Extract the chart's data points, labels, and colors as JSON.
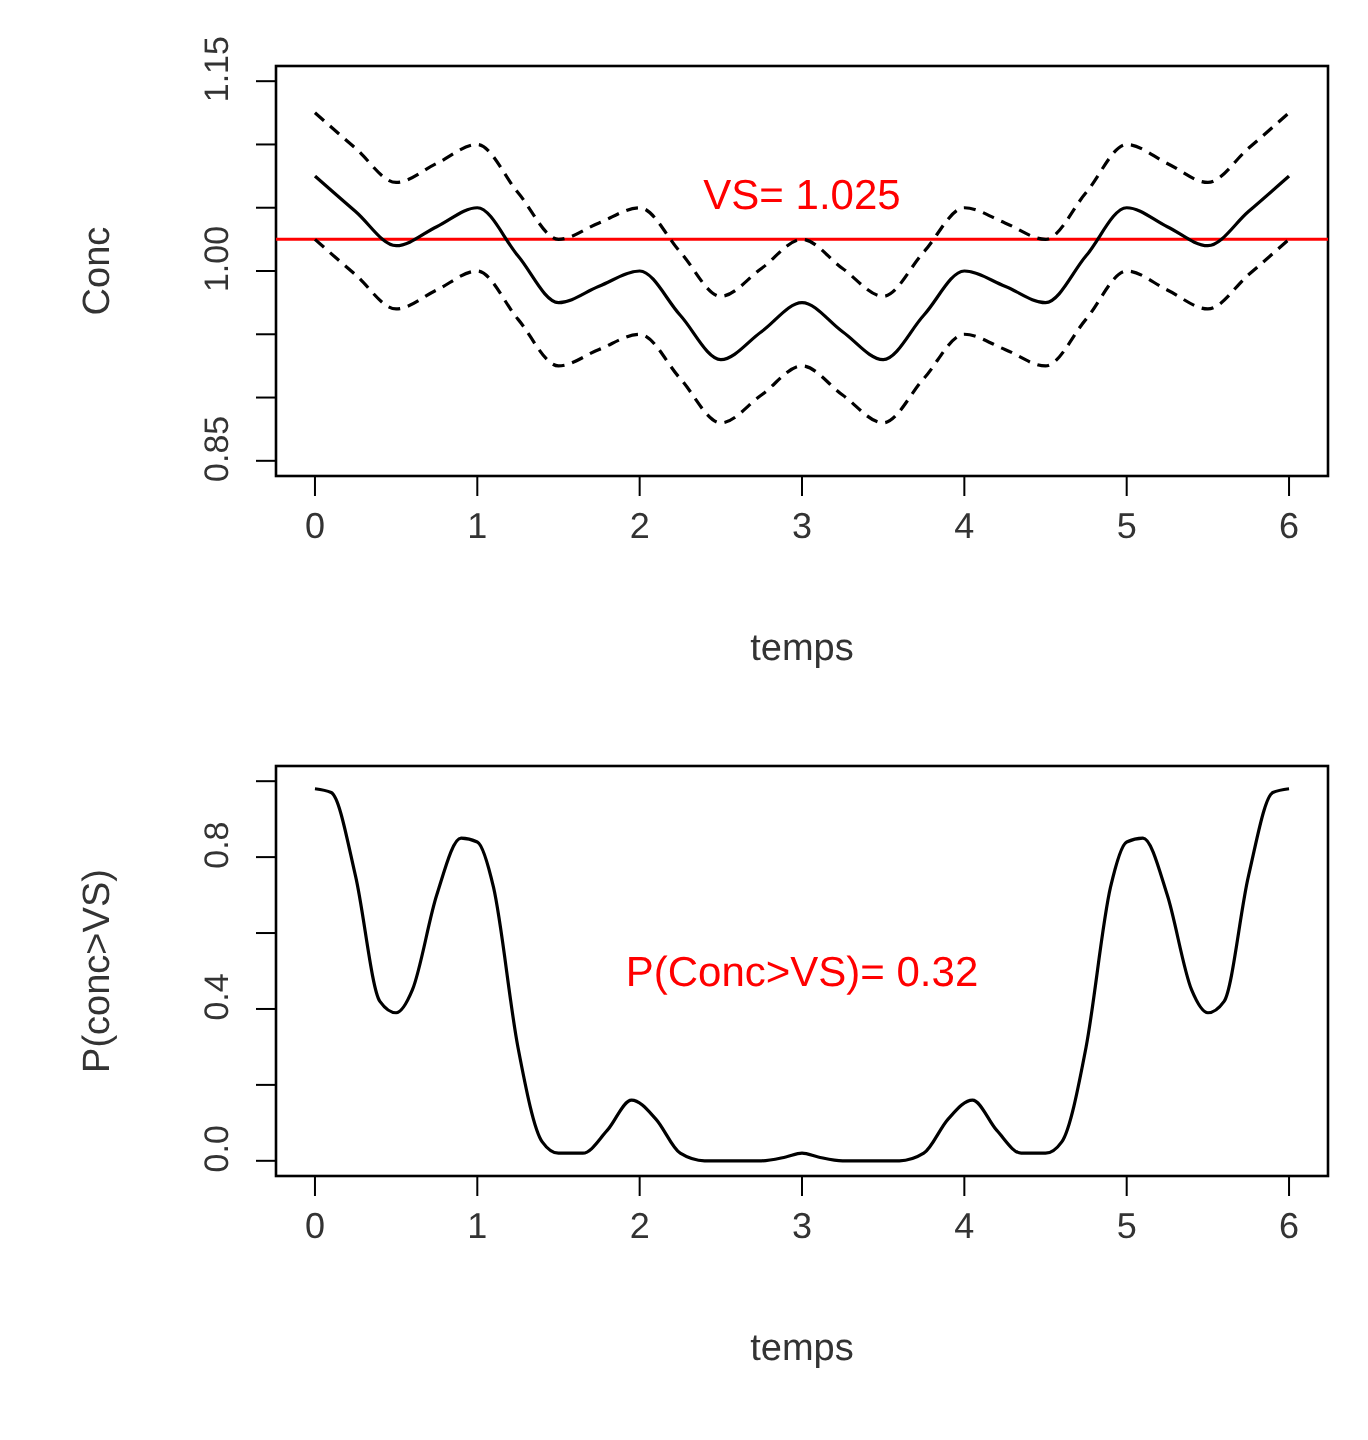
{
  "chart_data": [
    {
      "type": "line",
      "xlabel": "temps",
      "ylabel": "Conc",
      "xlim": [
        -0.24,
        6.24
      ],
      "xticks": [
        0,
        1,
        2,
        3,
        4,
        5,
        6
      ],
      "ylim": [
        0.838,
        1.162
      ],
      "yticks": [
        0.85,
        {
          "value": 0.9,
          "label": null
        },
        {
          "value": 0.95,
          "label": null
        },
        {
          "value": 1,
          "label": "1.00"
        },
        {
          "value": 1.05,
          "label": null
        },
        {
          "value": 1.1,
          "label": null
        },
        1.15
      ],
      "grid": false,
      "legend": false,
      "marker": "none",
      "x": [
        0,
        0.25,
        0.5,
        0.75,
        1,
        1.25,
        1.5,
        1.75,
        2,
        2.25,
        2.5,
        2.75,
        3,
        3.25,
        3.5,
        3.75,
        4,
        4.25,
        4.5,
        4.75,
        5,
        5.25,
        5.5,
        5.75,
        6
      ],
      "series": [
        {
          "color": "#000000",
          "line_style": "solid",
          "values": [
            1.075,
            1.047,
            1.02,
            1.035,
            1.05,
            1.012,
            0.975,
            0.988,
            1.0,
            0.965,
            0.93,
            0.952,
            0.975,
            0.952,
            0.93,
            0.965,
            1.0,
            0.988,
            0.975,
            1.012,
            1.05,
            1.035,
            1.02,
            1.047,
            1.075
          ]
        },
        {
          "color": "#000000",
          "line_style": "dashed",
          "values": [
            1.125,
            1.097,
            1.07,
            1.085,
            1.1,
            1.062,
            1.025,
            1.038,
            1.05,
            1.015,
            0.98,
            1.002,
            1.025,
            1.002,
            0.98,
            1.015,
            1.05,
            1.038,
            1.025,
            1.062,
            1.1,
            1.085,
            1.07,
            1.097,
            1.125
          ]
        },
        {
          "color": "#000000",
          "line_style": "dashed",
          "values": [
            1.025,
            0.997,
            0.97,
            0.985,
            1.0,
            0.962,
            0.925,
            0.938,
            0.95,
            0.915,
            0.88,
            0.902,
            0.925,
            0.902,
            0.88,
            0.915,
            0.95,
            0.938,
            0.925,
            0.962,
            1.0,
            0.985,
            0.97,
            0.997,
            1.025
          ]
        }
      ],
      "ref_lines": [
        {
          "axis": "y",
          "value": 1.025,
          "label": "VS= 1.025",
          "color": "#ff0000"
        }
      ]
    },
    {
      "type": "line",
      "xlabel": "temps",
      "ylabel": "P(conc>VS)",
      "xlim": [
        -0.24,
        6.24
      ],
      "xticks": [
        0,
        1,
        2,
        3,
        4,
        5,
        6
      ],
      "ylim": [
        -0.04,
        1.04
      ],
      "yticks": [
        {
          "value": 0,
          "label": "0.0"
        },
        {
          "value": 0.2,
          "label": null
        },
        0.4,
        {
          "value": 0.6,
          "label": null
        },
        0.8,
        {
          "value": 1.0,
          "label": null
        }
      ],
      "grid": false,
      "legend": false,
      "marker": "none",
      "annotations": [
        "P(Conc>VS)= 0.32"
      ],
      "x": [
        0,
        0.1,
        0.25,
        0.4,
        0.5,
        0.6,
        0.75,
        0.9,
        1,
        1.1,
        1.25,
        1.4,
        1.5,
        1.65,
        1.8,
        1.95,
        2.1,
        2.25,
        2.4,
        2.75,
        2.9,
        3,
        3.1,
        3.25,
        3.6,
        3.75,
        3.9,
        4.05,
        4.2,
        4.35,
        4.5,
        4.6,
        4.75,
        4.9,
        5,
        5.1,
        5.25,
        5.4,
        5.5,
        5.6,
        5.75,
        5.9,
        6
      ],
      "series": [
        {
          "color": "#000000",
          "line_style": "solid",
          "values": [
            0.98,
            0.97,
            0.75,
            0.42,
            0.39,
            0.45,
            0.7,
            0.85,
            0.84,
            0.72,
            0.3,
            0.05,
            0.02,
            0.02,
            0.08,
            0.16,
            0.11,
            0.02,
            0.0,
            0.0,
            0.01,
            0.02,
            0.01,
            0.0,
            0.0,
            0.02,
            0.11,
            0.16,
            0.08,
            0.02,
            0.02,
            0.05,
            0.3,
            0.72,
            0.84,
            0.85,
            0.7,
            0.45,
            0.39,
            0.42,
            0.75,
            0.97,
            0.98
          ]
        }
      ]
    }
  ]
}
